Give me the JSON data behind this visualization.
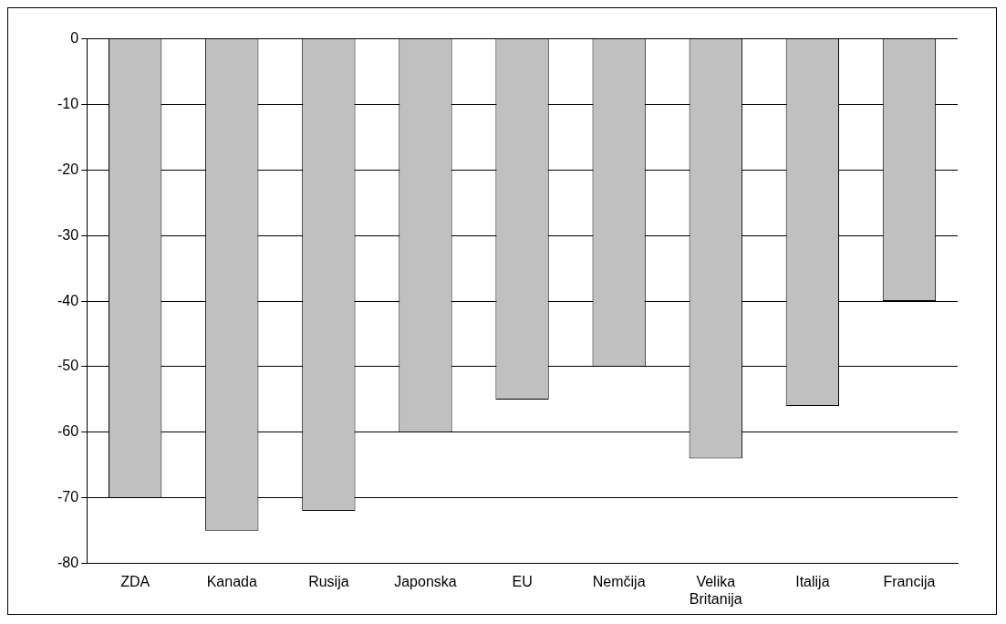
{
  "chart_data": {
    "type": "bar",
    "categories": [
      "ZDA",
      "Kanada",
      "Rusija",
      "Japonska",
      "EU",
      "Nemčija",
      "Velika Britanija",
      "Italija",
      "Francija"
    ],
    "values": [
      -70,
      -75,
      -72,
      -60,
      -55,
      -50,
      -64,
      -56,
      -40
    ],
    "color": "#c0c0c0",
    "ylim": [
      -80,
      0
    ],
    "yticks": [
      -80,
      -70,
      -60,
      -50,
      -40,
      -30,
      -20,
      -10,
      0
    ],
    "grid": "y",
    "legend": false
  }
}
